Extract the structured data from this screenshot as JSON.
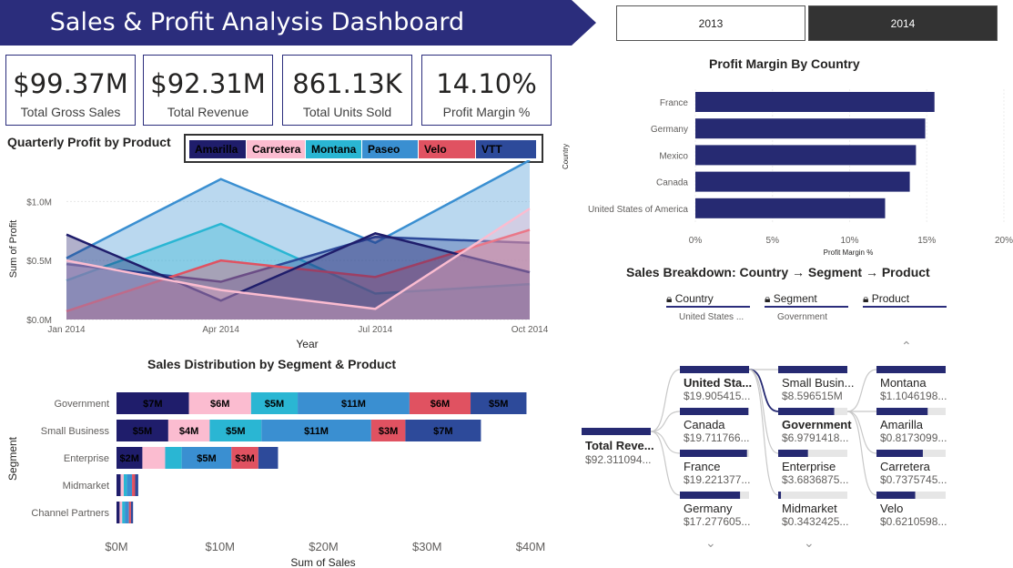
{
  "title": "Sales & Profit Analysis Dashboard",
  "year_slicer": {
    "options": [
      "2013",
      "2014"
    ],
    "selected": "2014"
  },
  "kpis": [
    {
      "value": "$99.37M",
      "label": "Total Gross Sales"
    },
    {
      "value": "$92.31M",
      "label": "Total Revenue"
    },
    {
      "value": "861.13K",
      "label": "Total Units Sold"
    },
    {
      "value": "14.10%",
      "label": "Profit Margin %"
    }
  ],
  "colors": {
    "Amarilla": "#1f1d6b",
    "Carretera": "#fbbcd0",
    "Montana": "#2ab6d3",
    "Paseo": "#3a8fd1",
    "Velo": "#e05261",
    "VTT": "#2d4a9a",
    "navy": "#2b2d7c"
  },
  "chart_data": [
    {
      "type": "area",
      "title": "Quarterly Profit by Product",
      "xlabel": "Year",
      "ylabel": "Sum of Profit",
      "x": [
        "Jan 2014",
        "Apr 2014",
        "Jul 2014",
        "Oct 2014"
      ],
      "y_ticks": [
        "$0.0M",
        "$0.5M",
        "$1.0M"
      ],
      "ylim": [
        0,
        1.35
      ],
      "legend": [
        "Amarilla",
        "Carretera",
        "Montana",
        "Paseo",
        "Velo",
        "VTT"
      ],
      "series": [
        {
          "name": "Paseo",
          "values": [
            0.52,
            1.19,
            0.65,
            1.35
          ]
        },
        {
          "name": "Montana",
          "values": [
            0.33,
            0.81,
            0.22,
            0.3
          ]
        },
        {
          "name": "VTT",
          "values": [
            0.47,
            0.32,
            0.7,
            0.65
          ]
        },
        {
          "name": "Velo",
          "values": [
            0.07,
            0.5,
            0.36,
            0.76
          ]
        },
        {
          "name": "Amarilla",
          "values": [
            0.72,
            0.16,
            0.73,
            0.4
          ]
        },
        {
          "name": "Carretera",
          "values": [
            0.5,
            0.25,
            0.09,
            0.94
          ]
        }
      ]
    },
    {
      "type": "bar",
      "title": "Profit Margin By Country",
      "xlabel": "Profit Margin %",
      "ylabel": "Country",
      "categories": [
        "France",
        "Germany",
        "Mexico",
        "Canada",
        "United States of America"
      ],
      "values": [
        15.5,
        14.9,
        14.3,
        13.9,
        12.3
      ],
      "x_ticks": [
        "0%",
        "5%",
        "10%",
        "15%",
        "20%"
      ],
      "xlim": [
        0,
        20
      ]
    },
    {
      "type": "bar",
      "title": "Sales Distribution by Segment & Product",
      "xlabel": "Sum of Sales",
      "ylabel": "Segment",
      "categories": [
        "Government",
        "Small Business",
        "Enterprise",
        "Midmarket",
        "Channel Partners"
      ],
      "x_ticks": [
        "$0M",
        "$10M",
        "$20M",
        "$30M",
        "$40M"
      ],
      "xlim": [
        0,
        40
      ],
      "series": [
        {
          "name": "Amarilla",
          "values": [
            7,
            5,
            2.5,
            0.4,
            0.3
          ],
          "labels": [
            "$7M",
            "$5M",
            "$2M",
            "",
            ""
          ]
        },
        {
          "name": "Carretera",
          "values": [
            6,
            4,
            2.2,
            0.3,
            0.25
          ],
          "labels": [
            "$6M",
            "$4M",
            "",
            "",
            ""
          ]
        },
        {
          "name": "Montana",
          "values": [
            4.5,
            5,
            1.6,
            0.3,
            0.25
          ],
          "labels": [
            "$5M",
            "$5M",
            "",
            "",
            ""
          ]
        },
        {
          "name": "Paseo",
          "values": [
            10.8,
            10.6,
            4.8,
            0.5,
            0.4
          ],
          "labels": [
            "$11M",
            "$11M",
            "$5M",
            "",
            ""
          ]
        },
        {
          "name": "Velo",
          "values": [
            5.9,
            3.3,
            2.6,
            0.3,
            0.2
          ],
          "labels": [
            "$6M",
            "$3M",
            "$3M",
            "",
            ""
          ]
        },
        {
          "name": "VTT",
          "values": [
            5.4,
            7.3,
            1.9,
            0.3,
            0.2
          ],
          "labels": [
            "$5M",
            "$7M",
            "",
            "",
            ""
          ]
        }
      ]
    }
  ],
  "decomposition": {
    "title": "Sales Breakdown: Country → Segment → Product",
    "levels": [
      {
        "header": "Country",
        "selected": "United States ..."
      },
      {
        "header": "Segment",
        "selected": "Government"
      },
      {
        "header": "Product",
        "selected": ""
      }
    ],
    "root": {
      "name": "Total Reve...",
      "value": "$92.311094..."
    },
    "country": [
      {
        "name": "United Sta...",
        "value": "$19.905415...",
        "fill": 1.0,
        "bold": true
      },
      {
        "name": "Canada",
        "value": "$19.711766...",
        "fill": 0.99
      },
      {
        "name": "France",
        "value": "$19.221377...",
        "fill": 0.97
      },
      {
        "name": "Germany",
        "value": "$17.277605...",
        "fill": 0.87
      }
    ],
    "segment": [
      {
        "name": "Small Busin...",
        "value": "$8.596515M",
        "fill": 1.0
      },
      {
        "name": "Government",
        "value": "$6.9791418...",
        "fill": 0.81,
        "bold": true
      },
      {
        "name": "Enterprise",
        "value": "$3.6836875...",
        "fill": 0.43
      },
      {
        "name": "Midmarket",
        "value": "$0.3432425...",
        "fill": 0.04
      }
    ],
    "product": [
      {
        "name": "Montana",
        "value": "$1.1046198...",
        "fill": 1.0
      },
      {
        "name": "Amarilla",
        "value": "$0.8173099...",
        "fill": 0.74
      },
      {
        "name": "Carretera",
        "value": "$0.7375745...",
        "fill": 0.67
      },
      {
        "name": "Velo",
        "value": "$0.6210598...",
        "fill": 0.56
      }
    ]
  }
}
